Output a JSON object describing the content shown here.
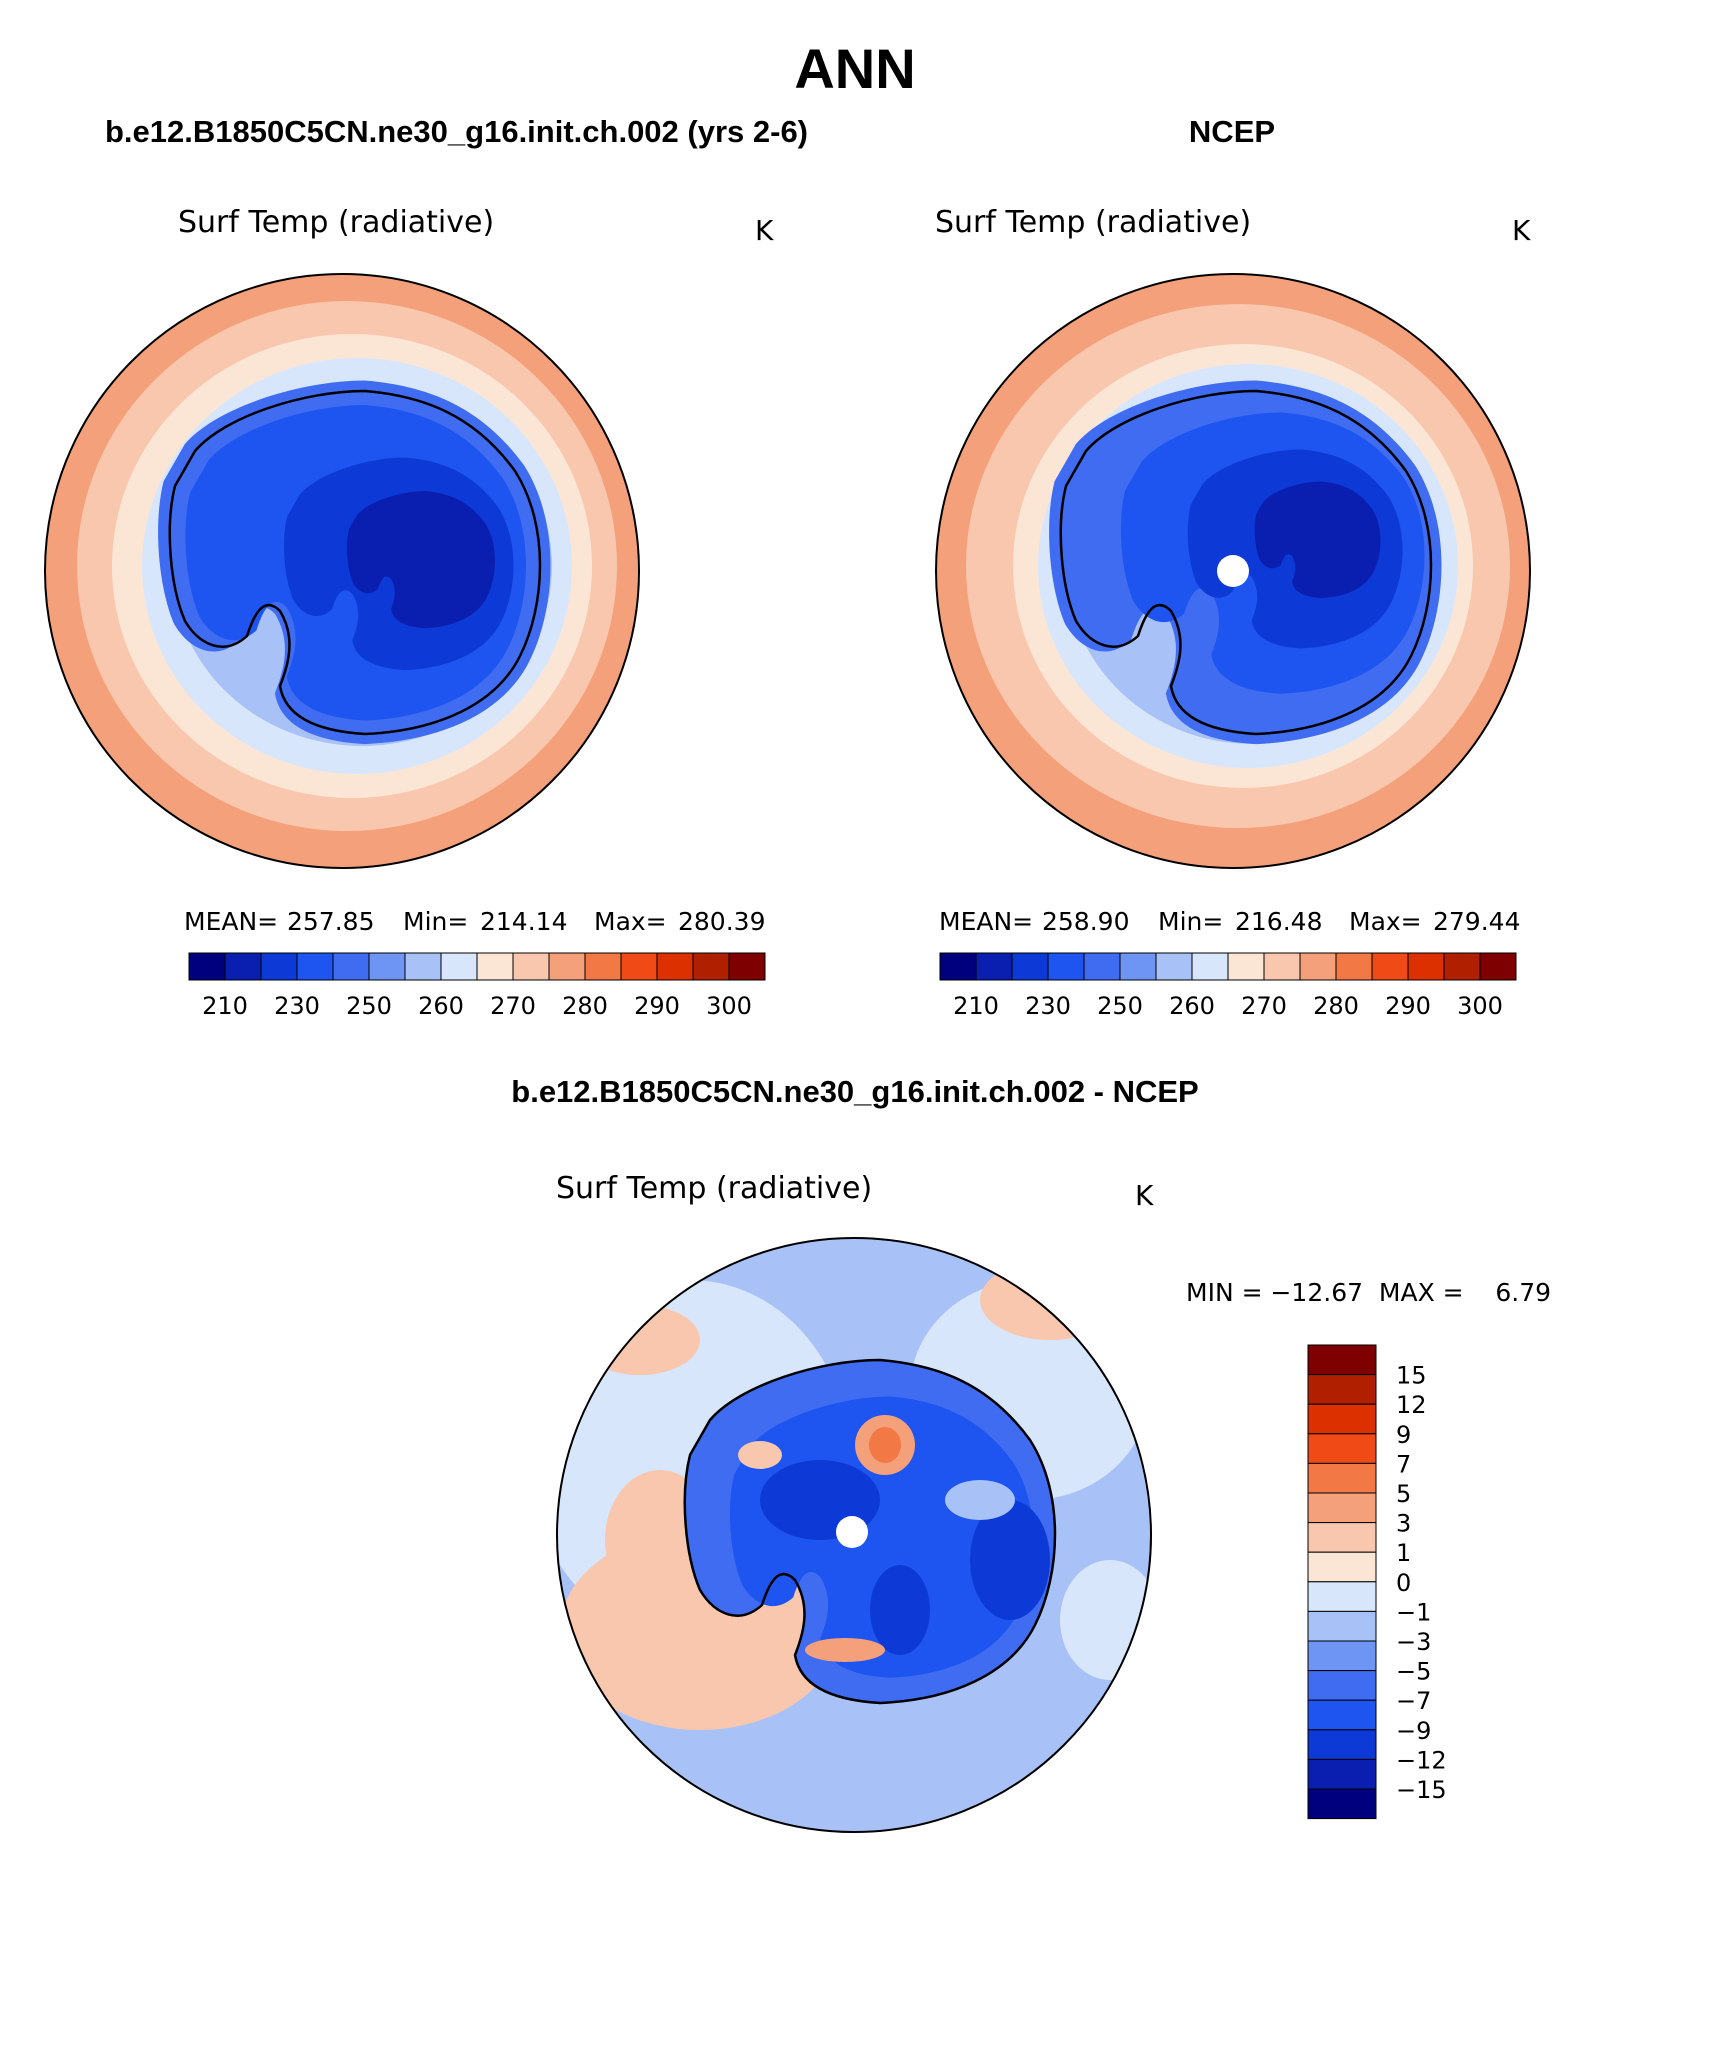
{
  "figure": {
    "title": "ANN",
    "bottom_title": "b.e12.B1850C5CN.ne30_g16.init.ch.002 - NCEP"
  },
  "panels": [
    {
      "id": "model",
      "header": "b.e12.B1850C5CN.ne30_g16.init.ch.002 (yrs 2-6)",
      "variable": "Surf Temp (radiative)",
      "units": "K",
      "stats": {
        "mean_label": "MEAN=",
        "mean": "257.85",
        "min_label": "Min=",
        "min": "214.14",
        "max_label": "Max=",
        "max": "280.39"
      }
    },
    {
      "id": "obs",
      "header": "NCEP",
      "variable": "Surf Temp (radiative)",
      "units": "K",
      "stats": {
        "mean_label": "MEAN=",
        "mean": "258.90",
        "min_label": "Min=",
        "min": "216.48",
        "max_label": "Max=",
        "max": "279.44"
      }
    }
  ],
  "difference": {
    "variable": "Surf Temp (radiative)",
    "units": "K",
    "minmax_text": "MIN = −12.67  MAX =    6.79",
    "colorbar_labels": [
      "15",
      "12",
      "9",
      "7",
      "5",
      "3",
      "1",
      "0",
      "−1",
      "−3",
      "−5",
      "−7",
      "−9",
      "−12",
      "−15"
    ]
  },
  "abs_colorbar": {
    "labels": [
      "210",
      "230",
      "250",
      "260",
      "270",
      "280",
      "290",
      "300"
    ],
    "colors": [
      "#00007f",
      "#0a1fb0",
      "#0d3ad6",
      "#1e54f0",
      "#3f6cf0",
      "#6f95f4",
      "#a8c2f8",
      "#d8e6fb",
      "#fbe6d6",
      "#f8c7ae",
      "#f4a07a",
      "#f27845",
      "#f04a17",
      "#dd3000",
      "#b02000",
      "#7f0000"
    ]
  },
  "diff_colorbar": {
    "colors": [
      "#00007f",
      "#0a1fb0",
      "#0d3ad6",
      "#1e54f0",
      "#3f6cf0",
      "#6f95f4",
      "#a8c2f8",
      "#d8e6fb",
      "#fbe6d6",
      "#f8c7ae",
      "#f4a07a",
      "#f27845",
      "#f04a17",
      "#dd3000",
      "#b02000",
      "#7f0000"
    ]
  }
}
